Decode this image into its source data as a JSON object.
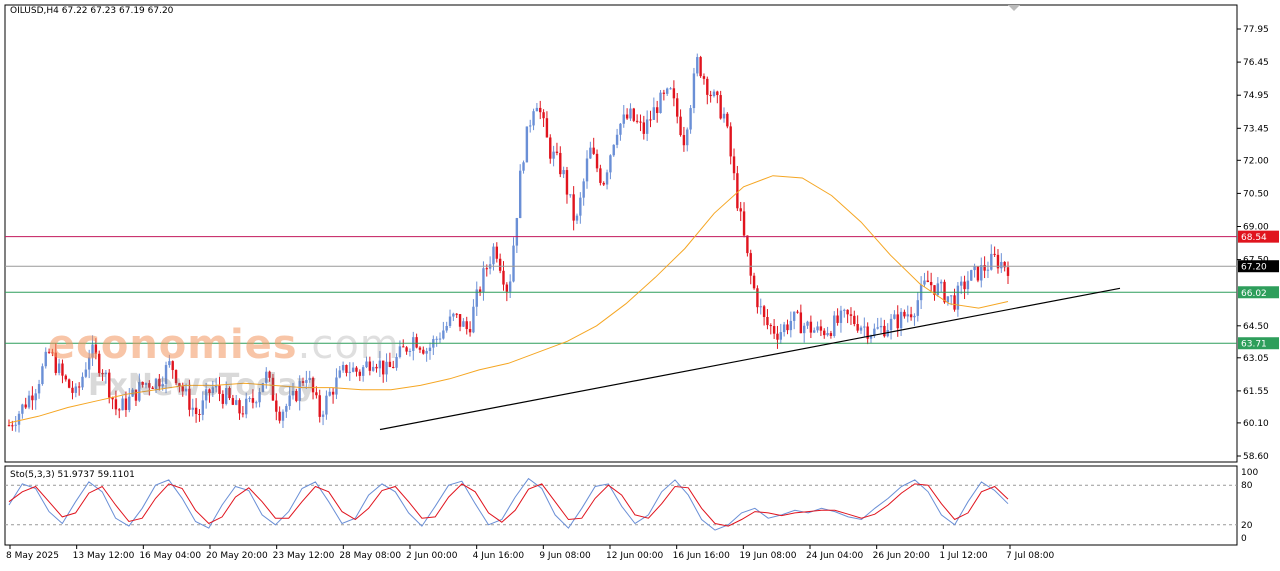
{
  "header": {
    "symbol": "OILUSD,H4",
    "ohlc": "67.22 67.23 67.19 67.20"
  },
  "indicator": {
    "label": "Sto(5,3,3) 51.9737 59.1101"
  },
  "watermark": {
    "line1_a": "economies",
    "line1_b": ".com",
    "line2": "FxNewsToday"
  },
  "colors": {
    "bull": "#6a8fd6",
    "bear": "#e0141e",
    "ma": "#f5a623",
    "stoch_main": "#6a8fd6",
    "stoch_signal": "#e0141e",
    "resistance": "#c2185b",
    "support": "#2e9e5b",
    "trendline": "#000000"
  },
  "chart_data": [
    {
      "type": "candlestick",
      "ylim": [
        58.6,
        78.5
      ],
      "y_ticks": [
        "77.95",
        "76.45",
        "74.95",
        "73.45",
        "72.00",
        "70.50",
        "69.00",
        "67.50",
        "66.02",
        "64.50",
        "63.05",
        "61.55",
        "60.10",
        "58.60"
      ],
      "x_ticks": [
        "8 May 2025",
        "13 May 12:00",
        "16 May 04:00",
        "20 May 20:00",
        "23 May 12:00",
        "28 May 08:00",
        "2 Jun 00:00",
        "4 Jun 16:00",
        "9 Jun 08:00",
        "12 Jun 00:00",
        "16 Jun 16:00",
        "19 Jun 08:00",
        "24 Jun 04:00",
        "26 Jun 20:00",
        "1 Jul 12:00",
        "7 Jul 08:00"
      ],
      "levels": [
        {
          "label": "68.54",
          "value": 68.54,
          "kind": "resistance"
        },
        {
          "label": "67.20",
          "value": 67.2,
          "kind": "current"
        },
        {
          "label": "66.02",
          "value": 66.02,
          "kind": "support"
        },
        {
          "label": "63.71",
          "value": 63.71,
          "kind": "support"
        }
      ],
      "trendline": [
        {
          "value": 59.8
        },
        {
          "value": 66.2
        }
      ],
      "close_path": [
        60.0,
        60.8,
        61.8,
        63.3,
        62.1,
        61.3,
        63.4,
        62.5,
        60.6,
        61.2,
        61.9,
        62.0,
        62.8,
        61.4,
        60.4,
        61.7,
        61.3,
        60.6,
        61.0,
        62.3,
        60.6,
        61.1,
        62.4,
        60.5,
        61.7,
        62.6,
        62.4,
        63.1,
        62.4,
        63.2,
        64.0,
        63.4,
        64.2,
        64.9,
        64.3,
        66.5,
        68.2,
        66.0,
        72.0,
        75.0,
        72.5,
        71.5,
        69.0,
        72.5,
        71.0,
        73.5,
        74.0,
        73.3,
        74.5,
        75.0,
        73.0,
        76.5,
        75.0,
        74.0,
        70.0,
        66.5,
        64.6,
        64.2,
        64.8,
        64.5,
        64.2,
        64.5,
        64.9,
        64.6,
        64.2,
        64.5,
        64.8,
        65.3,
        66.5,
        66.1,
        65.6,
        66.6,
        67.0,
        67.5,
        67.2
      ],
      "moving_average": [
        60.1,
        60.4,
        60.8,
        61.1,
        61.4,
        61.6,
        61.8,
        61.8,
        61.9,
        61.8,
        61.7,
        61.7,
        61.6,
        61.6,
        61.8,
        62.1,
        62.5,
        62.8,
        63.3,
        63.8,
        64.5,
        65.5,
        66.7,
        68.0,
        69.6,
        70.8,
        71.3,
        71.2,
        70.4,
        69.2,
        67.7,
        66.4,
        65.5,
        65.3,
        65.6
      ],
      "stochastic": {
        "ylim": [
          0,
          100
        ],
        "levels": [
          80,
          20
        ],
        "y_ticks": [
          "100",
          "80",
          "20",
          "0"
        ],
        "main": [
          50,
          82,
          75,
          40,
          22,
          55,
          85,
          70,
          30,
          18,
          45,
          80,
          88,
          60,
          25,
          15,
          50,
          78,
          72,
          35,
          20,
          40,
          75,
          85,
          55,
          22,
          30,
          65,
          82,
          70,
          38,
          18,
          48,
          80,
          86,
          52,
          20,
          28,
          62,
          90,
          75,
          35,
          15,
          45,
          78,
          82,
          48,
          22,
          35,
          70,
          88,
          65,
          28,
          12,
          20,
          38,
          45,
          30,
          35,
          42,
          38,
          45,
          40,
          32,
          28,
          45,
          60,
          78,
          88,
          70,
          35,
          20,
          55,
          85,
          72,
          52
        ],
        "signal": [
          55,
          70,
          78,
          55,
          32,
          38,
          68,
          78,
          50,
          25,
          30,
          60,
          82,
          75,
          42,
          22,
          32,
          62,
          76,
          55,
          30,
          30,
          55,
          78,
          70,
          40,
          28,
          45,
          72,
          78,
          55,
          30,
          32,
          62,
          82,
          70,
          38,
          24,
          42,
          74,
          82,
          55,
          28,
          30,
          60,
          80,
          65,
          35,
          30,
          52,
          78,
          76,
          45,
          22,
          18,
          28,
          40,
          38,
          34,
          38,
          40,
          42,
          42,
          36,
          30,
          36,
          50,
          68,
          82,
          80,
          52,
          28,
          38,
          70,
          78,
          59
        ]
      }
    }
  ]
}
